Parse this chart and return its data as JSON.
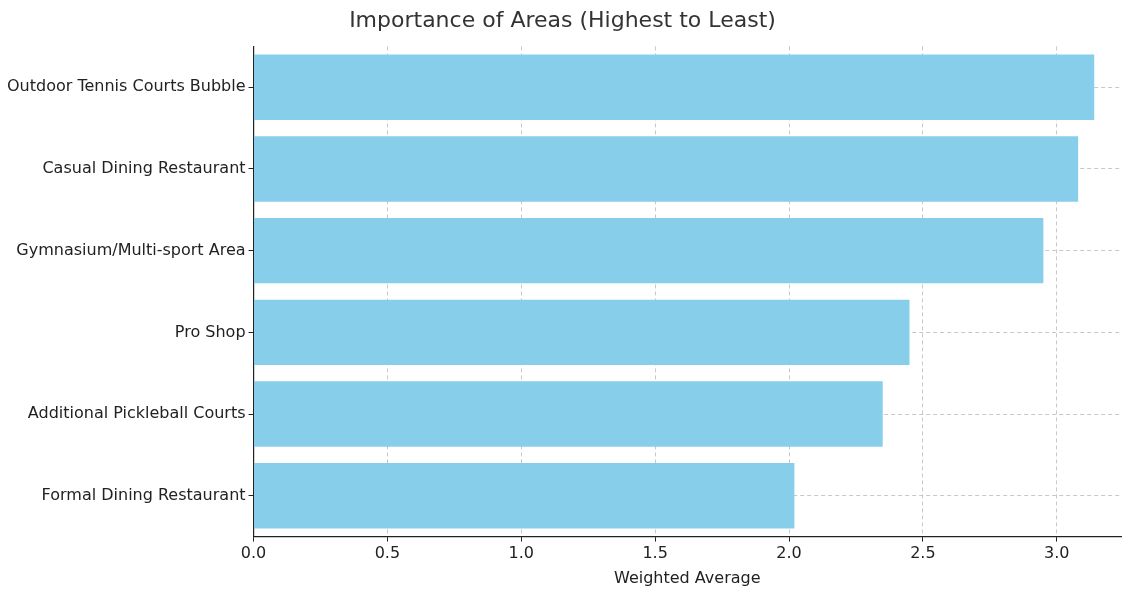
{
  "chart_data": {
    "type": "bar",
    "orientation": "horizontal",
    "title": "Importance of Areas (Highest to Least)",
    "xlabel": "Weighted Average",
    "categories": [
      "Outdoor Tennis Courts Bubble",
      "Casual Dining Restaurant",
      "Gymnasium/Multi-sport Area",
      "Pro Shop",
      "Additional Pickleball Courts",
      "Formal Dining Restaurant"
    ],
    "values": [
      3.14,
      3.08,
      2.95,
      2.45,
      2.35,
      2.02
    ],
    "color": "#87ceeb",
    "xlim": [
      0,
      3.24
    ],
    "xticks": [
      {
        "value": 0,
        "label": "0.0"
      },
      0.5,
      {
        "value": 1,
        "label": "1.0"
      },
      1.5,
      {
        "value": 2,
        "label": "2.0"
      },
      2.5,
      {
        "value": 3,
        "label": "3.0"
      }
    ],
    "grid": true,
    "legend": false
  }
}
